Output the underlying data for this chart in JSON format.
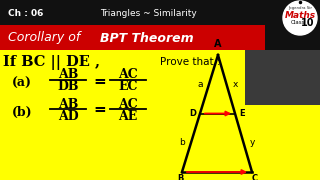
{
  "top_bar_bg": "#111111",
  "top_bar_text_ch": "Ch : 06",
  "top_bar_text_title": "Triangles ~ Similarity",
  "red_bar_bg": "#cc0000",
  "red_bar_text": "Corollary of ",
  "red_bar_bold": "BPT Theorem",
  "yellow_bg": "#ffff00",
  "logo_circle_color": "#ffffff",
  "logo_text1": "Jogendra Sir",
  "logo_text2": "Maths",
  "logo_text3": "Class",
  "logo_text4": "10",
  "photo_bg": "#555555",
  "triangle_color": "#000000",
  "arrow_color": "#ff0000",
  "label_a": "a",
  "label_x": "x",
  "label_b": "b",
  "label_y": "y",
  "label_A": "A",
  "label_D": "D",
  "label_E": "E",
  "label_B": "B",
  "label_C": "C"
}
